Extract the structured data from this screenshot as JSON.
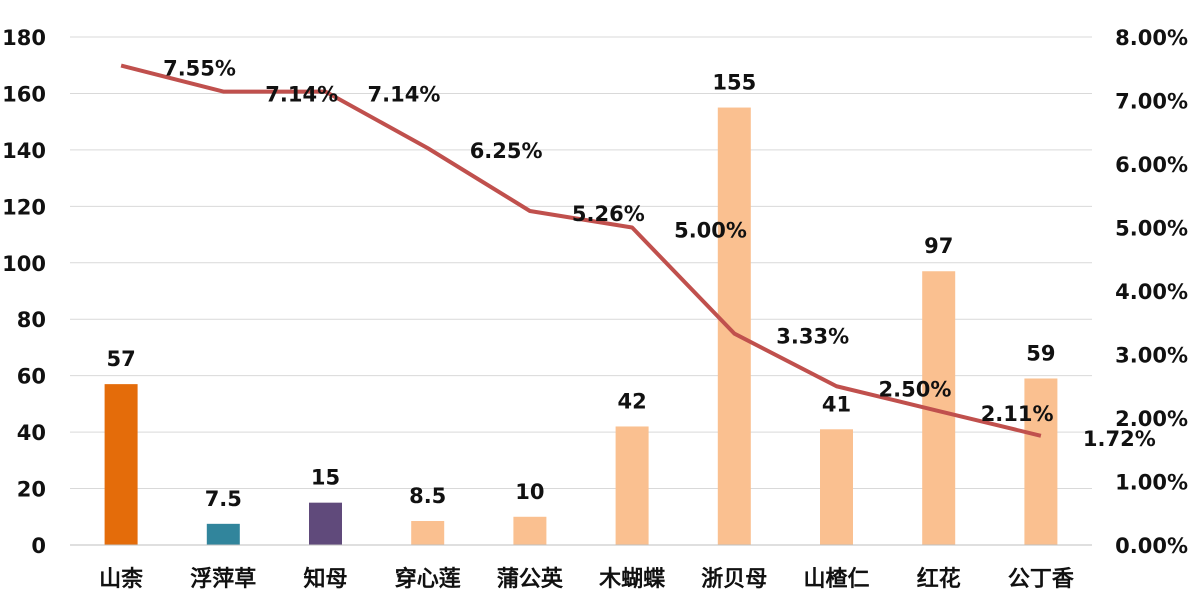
{
  "chart_data": {
    "type": "bar",
    "categories": [
      "山柰",
      "浮萍草",
      "知母",
      "穿心莲",
      "蒲公英",
      "木蝴蝶",
      "浙贝母",
      "山楂仁",
      "红花",
      "公丁香"
    ],
    "series": [
      {
        "chart_type": "bar",
        "axis": "left",
        "values": [
          57,
          7.5,
          15,
          8.5,
          10,
          42,
          155,
          41,
          97,
          59
        ],
        "value_labels": [
          "57",
          "7.5",
          "15",
          "8.5",
          "10",
          "42",
          "155",
          "41",
          "97",
          "59"
        ],
        "colors": [
          "#e46c0a",
          "#31859c",
          "#604a7b",
          "#fac090",
          "#fac090",
          "#fac090",
          "#fac090",
          "#fac090",
          "#fac090",
          "#fac090"
        ]
      },
      {
        "chart_type": "line",
        "axis": "right",
        "values": [
          7.55,
          7.14,
          7.14,
          6.25,
          5.26,
          5.0,
          3.33,
          2.5,
          2.11,
          1.72
        ],
        "value_labels": [
          "7.55%",
          "7.14%",
          "7.14%",
          "6.25%",
          "5.26%",
          "5.00%",
          "3.33%",
          "2.50%",
          "2.11%",
          "1.72%"
        ],
        "color": "#c0504d"
      }
    ],
    "y_left": {
      "range": [
        0,
        180
      ],
      "ticks": [
        "0",
        "20",
        "40",
        "60",
        "80",
        "100",
        "120",
        "140",
        "160",
        "180"
      ]
    },
    "y_right": {
      "range": [
        0,
        8
      ],
      "ticks": [
        "0.00%",
        "1.00%",
        "2.00%",
        "3.00%",
        "4.00%",
        "5.00%",
        "6.00%",
        "7.00%",
        "8.00%"
      ]
    },
    "title": "",
    "xlabel": "",
    "ylabel": "",
    "grid": "horizontal",
    "legend": "none"
  }
}
